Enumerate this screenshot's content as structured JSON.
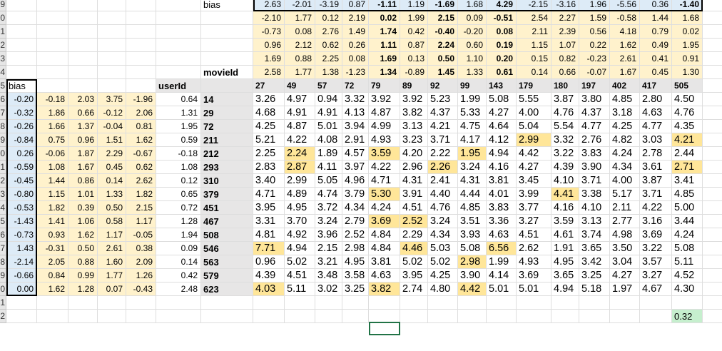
{
  "row_numbers": [
    "9",
    "0",
    "1",
    "2",
    "3",
    "4",
    "5",
    "6",
    "7",
    "8",
    "9",
    "0",
    "1",
    "2",
    "3",
    "4",
    "5",
    "6",
    "7",
    "8",
    "9",
    "0",
    "1",
    "2"
  ],
  "bias_label": "bias",
  "movie_header_label": "movieId",
  "user_header_label": "userId",
  "movie_bias": [
    "2.63",
    "-2.01",
    "-3.19",
    "0.87",
    "-1.11",
    "1.19",
    "-1.69",
    "1.68",
    "4.29",
    "-2.15",
    "-3.16",
    "1.96",
    "-5.56",
    "0.36",
    "-1.40"
  ],
  "movie_bias_bold": [
    false,
    false,
    false,
    false,
    true,
    false,
    true,
    false,
    true,
    false,
    false,
    false,
    false,
    false,
    true
  ],
  "movie_factors": [
    {
      "values": [
        "-2.10",
        "1.77",
        "0.12",
        "2.19",
        "0.02",
        "1.99",
        "2.15",
        "0.09",
        "-0.51",
        "2.54",
        "2.27",
        "1.59",
        "-0.58",
        "1.44",
        "1.68"
      ]
    },
    {
      "values": [
        "-0.73",
        "0.08",
        "2.76",
        "1.49",
        "1.74",
        "0.42",
        "-0.40",
        "-0.20",
        "0.08",
        "2.11",
        "2.39",
        "0.56",
        "4.18",
        "0.79",
        "0.02"
      ]
    },
    {
      "values": [
        "0.96",
        "2.12",
        "0.62",
        "0.26",
        "1.11",
        "0.87",
        "2.24",
        "0.60",
        "0.19",
        "1.15",
        "1.07",
        "0.22",
        "1.62",
        "0.49",
        "1.95"
      ]
    },
    {
      "values": [
        "1.69",
        "0.88",
        "2.25",
        "0.08",
        "1.69",
        "0.13",
        "0.50",
        "1.10",
        "0.20",
        "0.15",
        "0.82",
        "-0.23",
        "2.61",
        "0.41",
        "0.91"
      ]
    },
    {
      "values": [
        "2.58",
        "1.77",
        "1.38",
        "-1.23",
        "1.34",
        "-0.89",
        "1.45",
        "1.33",
        "0.61",
        "0.14",
        "0.66",
        "-0.07",
        "1.67",
        "0.45",
        "1.30"
      ]
    }
  ],
  "movie_ids": [
    "27",
    "49",
    "57",
    "72",
    "79",
    "89",
    "92",
    "99",
    "143",
    "179",
    "180",
    "197",
    "402",
    "417",
    "505"
  ],
  "users": [
    {
      "bias": "-0.20",
      "factors": [
        "-0.18",
        "2.03",
        "3.75",
        "-1.96"
      ],
      "factor5": "0.64",
      "id": "14",
      "ratings": [
        "3.26",
        "4.97",
        "0.94",
        "3.32",
        "3.92",
        "3.92",
        "5.23",
        "1.99",
        "5.08",
        "5.55",
        "3.87",
        "3.80",
        "4.85",
        "2.80",
        "4.50"
      ]
    },
    {
      "bias": "-0.32",
      "factors": [
        "1.86",
        "0.66",
        "-0.12",
        "2.06"
      ],
      "factor5": "1.31",
      "id": "29",
      "ratings": [
        "4.68",
        "4.91",
        "4.91",
        "4.13",
        "4.87",
        "3.82",
        "4.37",
        "5.33",
        "4.27",
        "4.00",
        "4.76",
        "4.37",
        "3.18",
        "4.63",
        "4.76"
      ]
    },
    {
      "bias": "-0.26",
      "factors": [
        "1.66",
        "1.37",
        "-0.04",
        "0.81"
      ],
      "factor5": "1.95",
      "id": "72",
      "ratings": [
        "4.25",
        "4.87",
        "5.01",
        "3.94",
        "4.99",
        "3.13",
        "4.21",
        "4.75",
        "4.64",
        "5.04",
        "5.54",
        "4.77",
        "4.25",
        "4.77",
        "4.35"
      ]
    },
    {
      "bias": "-0.84",
      "factors": [
        "0.75",
        "0.96",
        "1.51",
        "1.62"
      ],
      "factor5": "0.59",
      "id": "211",
      "ratings": [
        "5.21",
        "4.22",
        "4.08",
        "2.91",
        "4.93",
        "3.23",
        "3.71",
        "4.17",
        "4.12",
        "2.99",
        "3.32",
        "2.76",
        "4.82",
        "3.03",
        "4.21"
      ]
    },
    {
      "bias": "0.26",
      "factors": [
        "-0.06",
        "1.87",
        "2.29",
        "-0.67"
      ],
      "factor5": "-0.18",
      "id": "212",
      "ratings": [
        "2.25",
        "2.24",
        "1.89",
        "4.57",
        "3.59",
        "4.20",
        "2.22",
        "1.95",
        "4.94",
        "4.42",
        "3.22",
        "3.83",
        "4.24",
        "2.78",
        "2.44"
      ]
    },
    {
      "bias": "-0.59",
      "factors": [
        "1.08",
        "1.67",
        "0.45",
        "0.62"
      ],
      "factor5": "1.08",
      "id": "293",
      "ratings": [
        "2.83",
        "2.87",
        "4.11",
        "3.97",
        "4.22",
        "2.96",
        "2.26",
        "3.24",
        "4.16",
        "4.27",
        "4.39",
        "3.90",
        "4.34",
        "3.61",
        "2.71"
      ]
    },
    {
      "bias": "-0.45",
      "factors": [
        "1.44",
        "0.86",
        "0.14",
        "2.62"
      ],
      "factor5": "0.12",
      "id": "310",
      "ratings": [
        "3.40",
        "2.99",
        "5.05",
        "4.96",
        "4.71",
        "4.31",
        "2.41",
        "4.31",
        "3.81",
        "3.45",
        "4.10",
        "3.71",
        "4.00",
        "3.87",
        "3.41"
      ]
    },
    {
      "bias": "-0.80",
      "factors": [
        "1.15",
        "1.01",
        "1.33",
        "1.82"
      ],
      "factor5": "0.65",
      "id": "379",
      "ratings": [
        "4.71",
        "4.89",
        "4.74",
        "3.79",
        "5.30",
        "3.91",
        "4.40",
        "4.44",
        "4.01",
        "3.99",
        "4.41",
        "3.38",
        "5.17",
        "3.71",
        "4.85"
      ]
    },
    {
      "bias": "-0.53",
      "factors": [
        "1.82",
        "0.39",
        "0.50",
        "2.15"
      ],
      "factor5": "0.72",
      "id": "451",
      "ratings": [
        "3.95",
        "4.95",
        "3.72",
        "4.34",
        "4.24",
        "4.51",
        "4.76",
        "4.85",
        "3.83",
        "3.77",
        "4.16",
        "4.10",
        "2.11",
        "4.22",
        "5.00"
      ]
    },
    {
      "bias": "-1.43",
      "factors": [
        "1.41",
        "1.06",
        "0.58",
        "1.17"
      ],
      "factor5": "1.28",
      "id": "467",
      "ratings": [
        "3.31",
        "3.70",
        "3.24",
        "2.79",
        "3.69",
        "2.52",
        "3.24",
        "3.51",
        "3.36",
        "3.27",
        "3.59",
        "3.13",
        "2.77",
        "3.16",
        "3.44"
      ]
    },
    {
      "bias": "-0.73",
      "factors": [
        "0.93",
        "1.62",
        "1.17",
        "-0.05"
      ],
      "factor5": "1.94",
      "id": "508",
      "ratings": [
        "4.81",
        "4.92",
        "3.96",
        "2.52",
        "4.84",
        "2.29",
        "4.34",
        "3.93",
        "4.63",
        "4.51",
        "4.61",
        "3.74",
        "4.98",
        "3.69",
        "4.24"
      ]
    },
    {
      "bias": "1.43",
      "factors": [
        "-0.31",
        "0.50",
        "2.61",
        "0.38"
      ],
      "factor5": "0.09",
      "id": "546",
      "ratings": [
        "7.71",
        "4.94",
        "2.15",
        "2.98",
        "4.84",
        "4.46",
        "5.03",
        "5.08",
        "6.56",
        "2.62",
        "1.91",
        "3.65",
        "3.50",
        "3.22",
        "5.08"
      ]
    },
    {
      "bias": "-2.14",
      "factors": [
        "2.05",
        "0.88",
        "1.60",
        "2.09"
      ],
      "factor5": "0.14",
      "id": "563",
      "ratings": [
        "0.96",
        "5.02",
        "3.21",
        "4.95",
        "3.81",
        "5.02",
        "5.02",
        "2.98",
        "1.99",
        "4.93",
        "4.95",
        "3.42",
        "3.04",
        "3.57",
        "5.11"
      ]
    },
    {
      "bias": "-0.66",
      "factors": [
        "0.84",
        "0.99",
        "1.77",
        "1.26"
      ],
      "factor5": "0.42",
      "id": "579",
      "ratings": [
        "4.39",
        "4.51",
        "3.48",
        "3.58",
        "4.63",
        "3.95",
        "4.25",
        "3.90",
        "4.14",
        "3.69",
        "3.65",
        "3.25",
        "4.27",
        "3.27",
        "4.52"
      ]
    },
    {
      "bias": "0.00",
      "factors": [
        "1.62",
        "1.28",
        "0.07",
        "-0.43"
      ],
      "factor5": "2.48",
      "id": "623",
      "ratings": [
        "4.03",
        "5.11",
        "3.02",
        "3.25",
        "3.82",
        "2.74",
        "4.80",
        "4.42",
        "5.01",
        "5.01",
        "4.94",
        "5.18",
        "1.97",
        "4.67",
        "4.30"
      ]
    }
  ],
  "highlighted_cells": [
    [
      3,
      9
    ],
    [
      3,
      14
    ],
    [
      4,
      1
    ],
    [
      4,
      4
    ],
    [
      4,
      7
    ],
    [
      5,
      1
    ],
    [
      5,
      6
    ],
    [
      5,
      14
    ],
    [
      7,
      4
    ],
    [
      7,
      10
    ],
    [
      9,
      4
    ],
    [
      9,
      5
    ],
    [
      11,
      0
    ],
    [
      11,
      5
    ],
    [
      11,
      8
    ],
    [
      12,
      7
    ],
    [
      14,
      0
    ],
    [
      14,
      4
    ],
    [
      14,
      7
    ]
  ],
  "result_value": "0.32",
  "colors": {
    "factor_bg": "#fff2cc",
    "bias_bg": "#ddebf7",
    "highlight_bg": "#ffe699",
    "header_bg": "#e7e6e6",
    "result_bg": "#c6efce"
  }
}
